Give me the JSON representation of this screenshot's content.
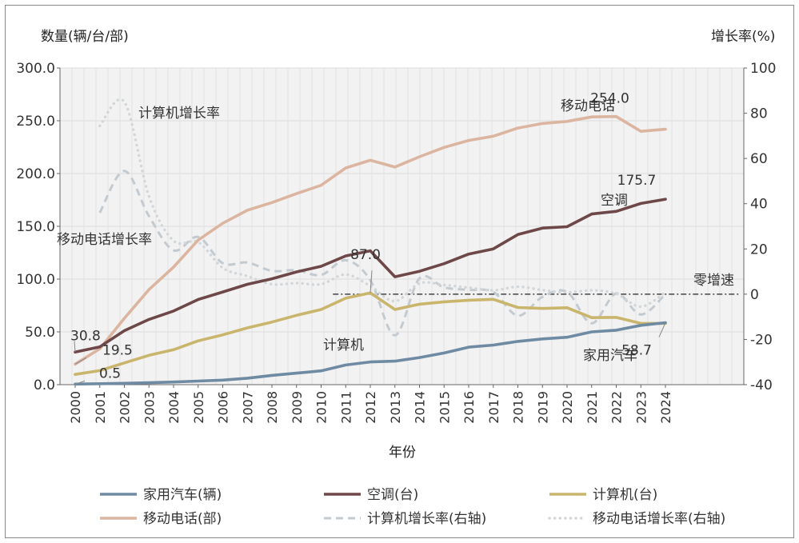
{
  "chart_data": {
    "type": "line",
    "y_left_label": "数量(辆/台/部)",
    "y_right_label": "增长率(%)",
    "xlabel": "年份",
    "ylim_left": [
      0,
      300
    ],
    "ylim_right": [
      -40,
      100
    ],
    "y_left_ticks": [
      "0.0",
      "50.0",
      "100.0",
      "150.0",
      "200.0",
      "250.0",
      "300.0"
    ],
    "y_right_ticks": [
      "-40",
      "-20",
      "0",
      "20",
      "40",
      "60",
      "80",
      "100"
    ],
    "grid": true,
    "x": [
      "2000",
      "2001",
      "2002",
      "2003",
      "2004",
      "2005",
      "2006",
      "2007",
      "2008",
      "2009",
      "2010",
      "2011",
      "2012",
      "2013",
      "2014",
      "2015",
      "2016",
      "2017",
      "2018",
      "2019",
      "2020",
      "2021",
      "2022",
      "2023",
      "2024"
    ],
    "series": [
      {
        "name": "家用汽车(辆)",
        "axis": "left",
        "style": "solid",
        "color": "#6f8aa3",
        "values": [
          0.5,
          0.9,
          1.3,
          1.8,
          2.5,
          3.4,
          4.3,
          6.1,
          8.8,
          10.9,
          13.1,
          18.6,
          21.5,
          22.3,
          25.7,
          30.0,
          35.5,
          37.5,
          41.0,
          43.3,
          44.9,
          50.0,
          51.6,
          56.2,
          58.7
        ]
      },
      {
        "name": "空调(台)",
        "axis": "left",
        "style": "solid",
        "color": "#6e4748",
        "values": [
          30.8,
          35.8,
          51.1,
          61.8,
          69.8,
          80.7,
          87.8,
          95.1,
          100.3,
          106.8,
          112.1,
          122.0,
          126.8,
          102.2,
          107.4,
          114.6,
          123.7,
          128.6,
          142.2,
          148.3,
          149.6,
          161.7,
          164.2,
          171.7,
          175.7
        ]
      },
      {
        "name": "计算机(台)",
        "axis": "left",
        "style": "solid",
        "color": "#c9b56c",
        "values": [
          9.7,
          13.3,
          20.6,
          27.8,
          33.1,
          41.5,
          47.2,
          53.8,
          59.3,
          65.7,
          71.2,
          81.9,
          87.0,
          71.2,
          76.2,
          78.5,
          80.0,
          80.8,
          73.1,
          72.2,
          72.9,
          63.5,
          63.7,
          58.0,
          58.0
        ]
      },
      {
        "name": "移动电话(部)",
        "axis": "left",
        "style": "solid",
        "color": "#dcb5a0",
        "values": [
          19.5,
          34.0,
          62.9,
          90.1,
          111.4,
          137.0,
          152.9,
          165.2,
          172.5,
          181.0,
          188.9,
          205.3,
          212.6,
          206.1,
          215.9,
          224.8,
          231.4,
          235.4,
          243.1,
          247.4,
          249.4,
          253.6,
          254.0,
          240.0,
          242.0
        ]
      },
      {
        "name": "计算机增长率(右轴)",
        "axis": "right",
        "style": "dashed",
        "color": "#c3cbd1",
        "values": [
          null,
          36.0,
          54.5,
          34.5,
          19.4,
          25.3,
          13.7,
          14.0,
          10.3,
          10.6,
          8.5,
          15.0,
          6.2,
          -18.2,
          7.0,
          3.0,
          1.9,
          1.0,
          -9.5,
          -1.2,
          1.0,
          -12.9,
          0.3,
          -9.0,
          0.0
        ]
      },
      {
        "name": "移动电话增长率(右轴)",
        "axis": "right",
        "style": "dotted",
        "color": "#d2d6d9",
        "values": [
          null,
          74.4,
          85.0,
          43.3,
          23.6,
          23.0,
          11.6,
          8.0,
          4.4,
          4.9,
          4.4,
          8.7,
          3.6,
          -3.1,
          4.8,
          4.1,
          2.9,
          1.7,
          3.3,
          1.8,
          0.8,
          1.7,
          0.2,
          -5.5,
          0.8
        ]
      }
    ],
    "reference_line": {
      "axis": "right",
      "value": 0,
      "label": "零增速"
    },
    "annotations": [
      {
        "text": "30.8",
        "x": "2000",
        "series": "空调(台)"
      },
      {
        "text": "19.5",
        "x": "2000",
        "series": "移动电话(部)"
      },
      {
        "text": "0.5",
        "x": "2000",
        "series": "家用汽车(辆)"
      },
      {
        "text": "87.0",
        "x": "2012",
        "series": "计算机(台)"
      },
      {
        "text": "254.0",
        "x": "2022",
        "series": "移动电话(部)"
      },
      {
        "text": "175.7",
        "x": "2024",
        "series": "空调(台)"
      },
      {
        "text": "58.7",
        "x": "2024",
        "series": "家用汽车(辆)"
      }
    ],
    "series_labels": [
      "计算机增长率",
      "移动电话增长率",
      "移动电话",
      "空调",
      "计算机",
      "家用汽车"
    ],
    "legend_position": "bottom"
  }
}
